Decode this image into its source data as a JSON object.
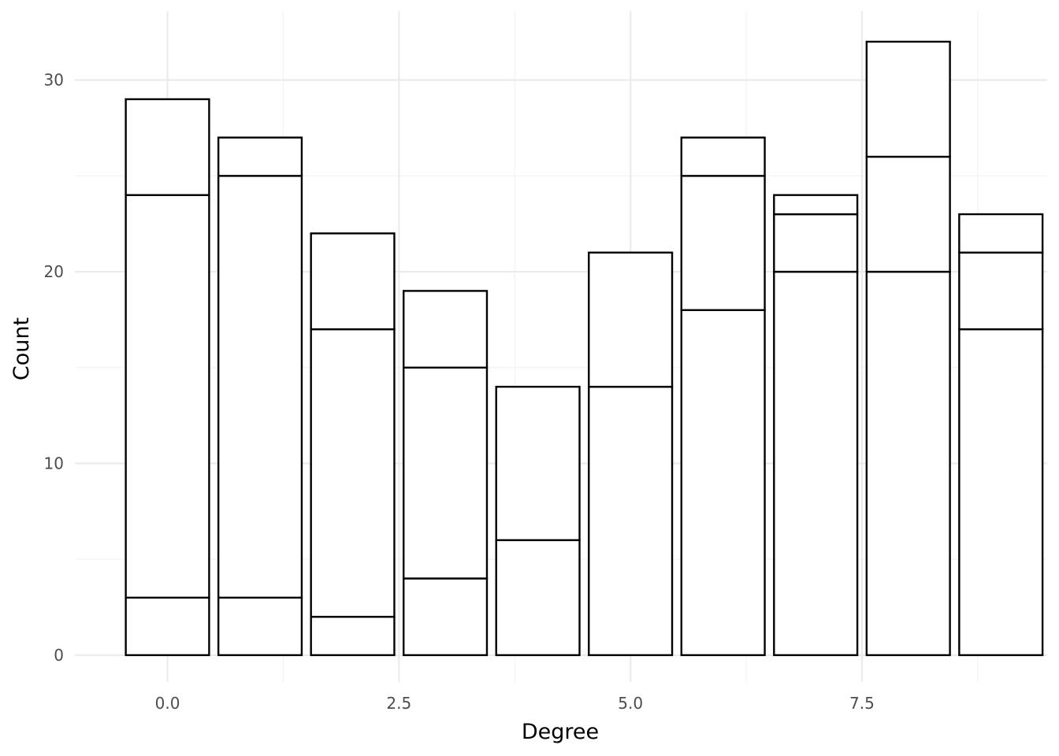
{
  "chart_data": {
    "type": "bar",
    "stacked": true,
    "xlabel": "Degree",
    "ylabel": "Count",
    "xlim": [
      -1.0,
      9.5
    ],
    "ylim": [
      -1.4,
      33.6
    ],
    "x_ticks": [
      0.0,
      2.5,
      5.0,
      7.5
    ],
    "x_tick_labels": [
      "0.0",
      "2.5",
      "5.0",
      "7.5"
    ],
    "y_ticks": [
      0,
      10,
      20,
      30
    ],
    "y_tick_labels": [
      "0",
      "10",
      "20",
      "30"
    ],
    "grid": true,
    "bar_fill": "#ffffff",
    "bar_outline": "#000000",
    "x": [
      0,
      1,
      2,
      3,
      4,
      5,
      6,
      7,
      8,
      9
    ],
    "stacks": [
      [
        3,
        21,
        5
      ],
      [
        3,
        22,
        2
      ],
      [
        2,
        15,
        5
      ],
      [
        4,
        11,
        4
      ],
      [
        6,
        8
      ],
      [
        14,
        7
      ],
      [
        18,
        7,
        2
      ],
      [
        20,
        3,
        1
      ],
      [
        20,
        6,
        6
      ],
      [
        17,
        4,
        2
      ]
    ],
    "totals": [
      29,
      27,
      22,
      19,
      14,
      21,
      27,
      24,
      32,
      23
    ]
  }
}
